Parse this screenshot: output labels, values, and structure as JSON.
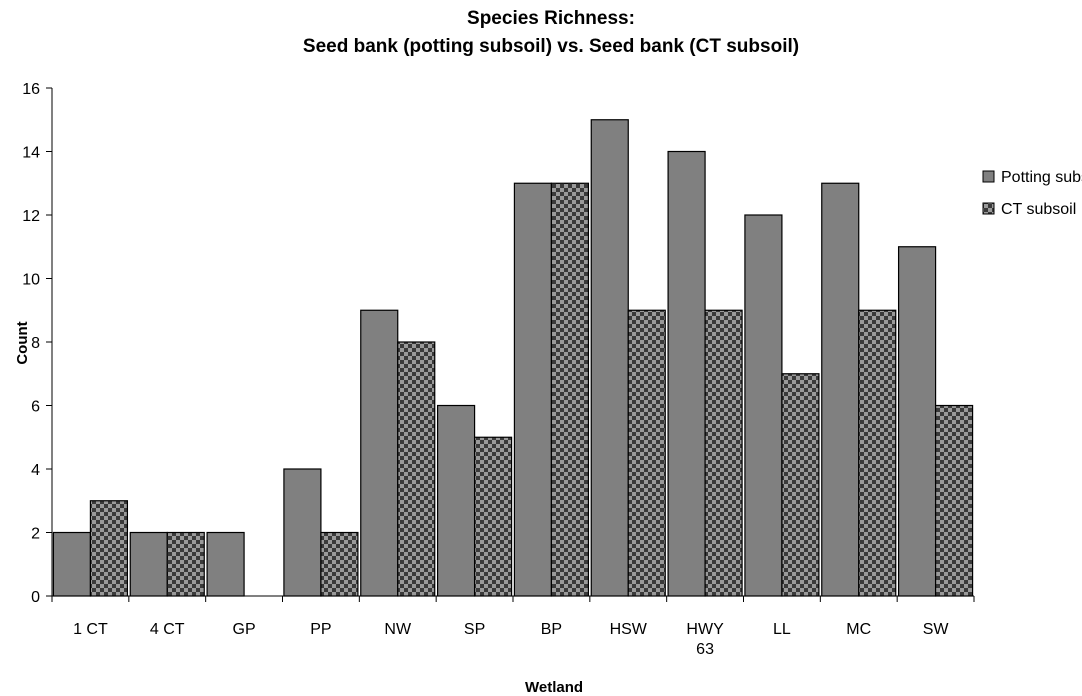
{
  "chart_data": {
    "type": "bar",
    "title": "Species Richness:",
    "subtitle": "Seed bank (potting subsoil) vs. Seed bank (CT subsoil)",
    "xlabel": "Wetland",
    "ylabel": "Count",
    "categories": [
      "1 CT",
      "4 CT",
      "GP",
      "PP",
      "NW",
      "SP",
      "BP",
      "HSW",
      "HWY 63",
      "LL",
      "MC",
      "SW"
    ],
    "category_lines": [
      [
        "1 CT"
      ],
      [
        "4 CT"
      ],
      [
        "GP"
      ],
      [
        "PP"
      ],
      [
        "NW"
      ],
      [
        "SP"
      ],
      [
        "BP"
      ],
      [
        "HSW"
      ],
      [
        "HWY",
        "63"
      ],
      [
        "LL"
      ],
      [
        "MC"
      ],
      [
        "SW"
      ]
    ],
    "series": [
      {
        "name": "Potting subsoil",
        "values": [
          2,
          2,
          2,
          4,
          9,
          6,
          13,
          15,
          14,
          12,
          13,
          11
        ],
        "color": "#808080",
        "pattern": "solid"
      },
      {
        "name": "CT subsoil",
        "values": [
          3,
          2,
          0,
          2,
          8,
          5,
          13,
          9,
          9,
          7,
          9,
          6
        ],
        "color": "#555555",
        "pattern": "checker"
      }
    ],
    "ylim": [
      0,
      16
    ],
    "yticks": [
      0,
      2,
      4,
      6,
      8,
      10,
      12,
      14,
      16
    ],
    "grid": false,
    "legend": "right"
  }
}
